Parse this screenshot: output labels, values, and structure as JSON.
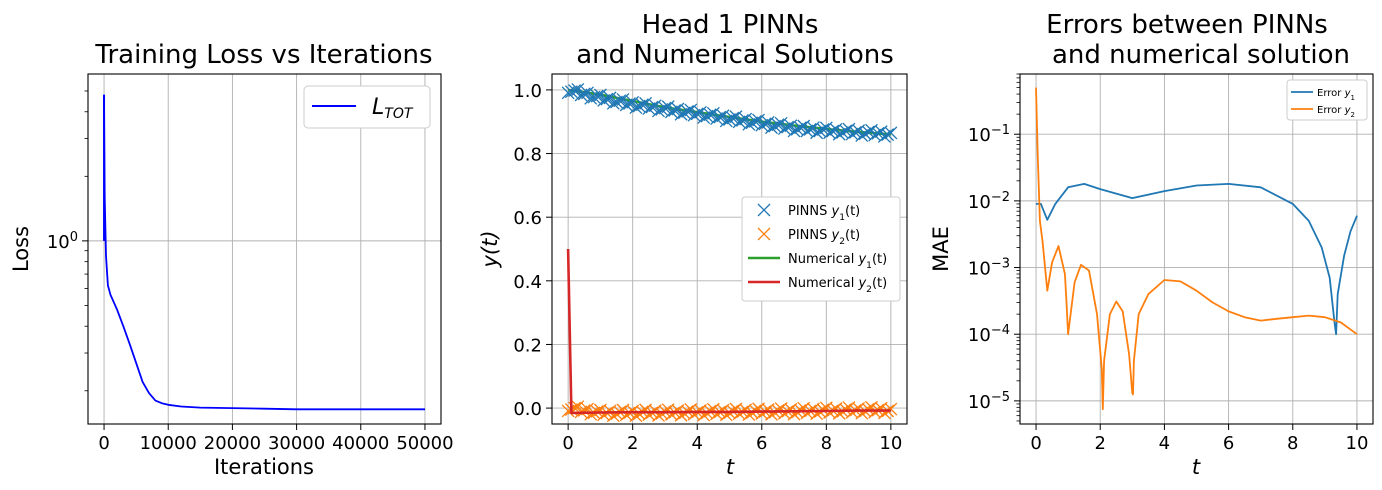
{
  "chart_data": [
    {
      "type": "line",
      "title": "Training Loss vs Iterations",
      "xlabel": "Iterations",
      "ylabel": "Loss",
      "yscale": "log",
      "xlim": [
        -2500,
        52500
      ],
      "ylim": [
        0.14,
        6.0
      ],
      "xticks": [
        0,
        10000,
        20000,
        30000,
        40000,
        50000
      ],
      "xtick_labels": [
        "0",
        "10000",
        "20000",
        "30000",
        "40000",
        "50000"
      ],
      "ytick_major": [
        1
      ],
      "grid": true,
      "legend_position": "top-right",
      "series": [
        {
          "name": "L_TOT",
          "color": "#0000ff",
          "x": [
            0,
            100,
            300,
            600,
            1000,
            2000,
            3000,
            4000,
            5000,
            6000,
            7000,
            8000,
            9000,
            10000,
            12000,
            15000,
            20000,
            25000,
            30000,
            35000,
            40000,
            45000,
            50000
          ],
          "y": [
            4.8,
            1.6,
            0.85,
            0.62,
            0.56,
            0.48,
            0.4,
            0.33,
            0.27,
            0.22,
            0.195,
            0.18,
            0.175,
            0.172,
            0.169,
            0.167,
            0.166,
            0.165,
            0.164,
            0.164,
            0.164,
            0.164,
            0.164
          ]
        }
      ]
    },
    {
      "type": "line",
      "title": "Head 1 PINNs and Numerical Solutions",
      "title_lines": [
        "Head 1 PINNs",
        "and Numerical Solutions"
      ],
      "xlabel": "t",
      "ylabel": "y(t)",
      "xlim": [
        -0.5,
        10.5
      ],
      "ylim": [
        -0.05,
        1.05
      ],
      "xticks": [
        0,
        2,
        4,
        6,
        8,
        10
      ],
      "xtick_labels": [
        "0",
        "2",
        "4",
        "6",
        "8",
        "10"
      ],
      "yticks": [
        0.0,
        0.2,
        0.4,
        0.6,
        0.8,
        1.0
      ],
      "ytick_labels": [
        "0.0",
        "0.2",
        "0.4",
        "0.6",
        "0.8",
        "1.0"
      ],
      "grid": true,
      "legend_position": "center-right",
      "series": [
        {
          "name": "PINNS y1(t)",
          "legend_plain": "PINNS ",
          "legend_var": "y",
          "legend_sub": "1",
          "legend_tail": "(t)",
          "style": "marker-x",
          "color": "#1f77b4",
          "x": [
            0,
            1,
            2,
            3,
            4,
            5,
            6,
            7,
            8,
            9,
            10
          ],
          "y": [
            1.0,
            0.975,
            0.955,
            0.94,
            0.925,
            0.91,
            0.895,
            0.88,
            0.872,
            0.866,
            0.862
          ]
        },
        {
          "name": "PINNS y2(t)",
          "legend_plain": "PINNS ",
          "legend_var": "y",
          "legend_sub": "2",
          "legend_tail": "(t)",
          "style": "marker-x",
          "color": "#ff7f0e",
          "x": [
            0,
            1,
            2,
            3,
            4,
            5,
            6,
            7,
            8,
            9,
            10
          ],
          "y": [
            0.0,
            -0.015,
            -0.015,
            -0.014,
            -0.013,
            -0.012,
            -0.011,
            -0.01,
            -0.008,
            -0.007,
            -0.006
          ]
        },
        {
          "name": "Numerical y1(t)",
          "legend_plain": "Numerical ",
          "legend_var": "y",
          "legend_sub": "1",
          "legend_tail": "(t)",
          "style": "line",
          "color": "#2ca02c",
          "x": [
            0,
            1,
            2,
            3,
            4,
            5,
            6,
            7,
            8,
            9,
            10
          ],
          "y": [
            1.0,
            0.985,
            0.965,
            0.945,
            0.93,
            0.915,
            0.9,
            0.888,
            0.877,
            0.868,
            0.86
          ]
        },
        {
          "name": "Numerical y2(t)",
          "legend_plain": "Numerical ",
          "legend_var": "y",
          "legend_sub": "2",
          "legend_tail": "(t)",
          "style": "line",
          "color": "#d62728",
          "x": [
            0,
            0.1,
            1,
            2,
            3,
            4,
            5,
            6,
            7,
            8,
            9,
            10
          ],
          "y": [
            0.5,
            -0.015,
            -0.014,
            -0.013,
            -0.013,
            -0.012,
            -0.012,
            -0.011,
            -0.01,
            -0.009,
            -0.008,
            -0.008
          ]
        }
      ]
    },
    {
      "type": "line",
      "title": "Errors between PINNs and numerical solution",
      "title_lines": [
        "Errors between PINNs",
        "and numerical solution"
      ],
      "xlabel": "t",
      "ylabel": "MAE",
      "yscale": "log",
      "xlim": [
        -0.5,
        10.5
      ],
      "ylim": [
        4.5e-06,
        0.8
      ],
      "xticks": [
        0,
        2,
        4,
        6,
        8,
        10
      ],
      "xtick_labels": [
        "0",
        "2",
        "4",
        "6",
        "8",
        "10"
      ],
      "ytick_exponents": [
        -5,
        -4,
        -3,
        -2,
        -1
      ],
      "grid": true,
      "legend_position": "top-right",
      "series": [
        {
          "name": "Error y1",
          "legend_plain": "Error ",
          "legend_var": "y",
          "legend_sub": "1",
          "color": "#1f77b4",
          "x": [
            0,
            0.15,
            0.35,
            0.6,
            1.0,
            1.5,
            2.0,
            3.0,
            4.0,
            5.0,
            6.0,
            7.0,
            8.0,
            8.5,
            8.9,
            9.15,
            9.3,
            9.35,
            9.4,
            9.6,
            9.8,
            10.0
          ],
          "y": [
            0.009,
            0.009,
            0.0052,
            0.009,
            0.016,
            0.018,
            0.015,
            0.011,
            0.014,
            0.017,
            0.018,
            0.016,
            0.009,
            0.005,
            0.002,
            0.0007,
            0.00015,
            0.0001,
            0.0004,
            0.0015,
            0.0035,
            0.006
          ]
        },
        {
          "name": "Error y2",
          "legend_plain": "Error ",
          "legend_var": "y",
          "legend_sub": "2",
          "color": "#ff7f0e",
          "x": [
            0,
            0.05,
            0.12,
            0.2,
            0.35,
            0.5,
            0.7,
            0.9,
            0.95,
            1.0,
            1.2,
            1.4,
            1.65,
            1.9,
            2.05,
            2.08,
            2.12,
            2.3,
            2.5,
            2.7,
            2.9,
            3.0,
            3.02,
            3.05,
            3.2,
            3.5,
            4.0,
            4.5,
            5.0,
            5.5,
            6.0,
            6.5,
            7.0,
            7.5,
            8.0,
            8.5,
            9.0,
            9.5,
            10.0
          ],
          "y": [
            0.5,
            0.05,
            0.005,
            0.0025,
            0.00045,
            0.0012,
            0.0021,
            0.0008,
            0.0003,
            0.0001,
            0.0006,
            0.0011,
            0.0009,
            0.0002,
            3e-05,
            7.5e-06,
            4e-05,
            0.0002,
            0.00031,
            0.00022,
            5e-05,
            1.3e-05,
            1.25e-05,
            4e-05,
            0.0002,
            0.0004,
            0.00065,
            0.00062,
            0.00045,
            0.0003,
            0.00022,
            0.00018,
            0.00016,
            0.00017,
            0.00018,
            0.00019,
            0.00018,
            0.00015,
            0.0001
          ]
        }
      ]
    }
  ]
}
